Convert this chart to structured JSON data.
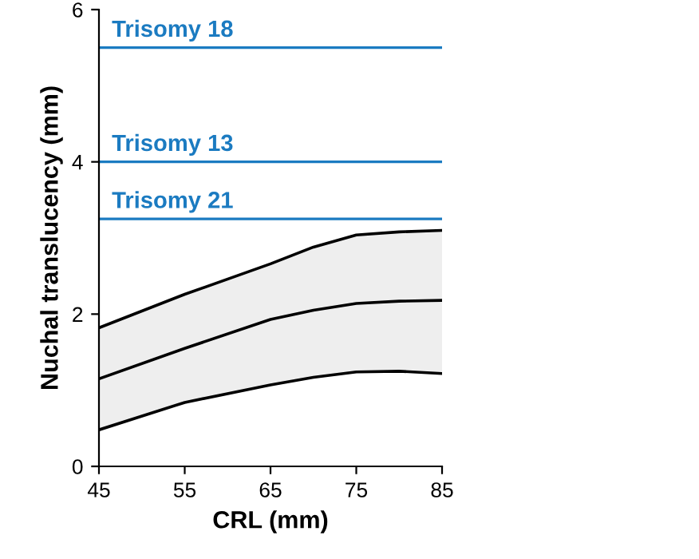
{
  "chart_data": {
    "type": "line",
    "xlabel": "CRL (mm)",
    "ylabel": "Nuchal translucency (mm)",
    "x": [
      45,
      55,
      65,
      70,
      75,
      80,
      85
    ],
    "series": [
      {
        "color": "#000000",
        "values": [
          1.82,
          2.26,
          2.66,
          2.88,
          3.04,
          3.08,
          3.1
        ]
      },
      {
        "color": "#000000",
        "values": [
          1.15,
          1.55,
          1.93,
          2.05,
          2.14,
          2.17,
          2.18
        ],
        "lower": [
          0.48,
          0.84,
          1.07,
          1.17,
          1.24,
          1.25,
          1.22
        ],
        "upper": [
          1.82,
          2.26,
          2.66,
          2.88,
          3.04,
          3.08,
          3.1
        ]
      },
      {
        "color": "#000000",
        "values": [
          0.48,
          0.84,
          1.07,
          1.17,
          1.24,
          1.25,
          1.22
        ]
      }
    ],
    "ref_lines": [
      {
        "axis": "y",
        "value": 5.5,
        "label": "Trisomy 18",
        "color": "#1b7bc1"
      },
      {
        "axis": "y",
        "value": 4.0,
        "label": "Trisomy 13",
        "color": "#1b7bc1"
      },
      {
        "axis": "y",
        "value": 3.25,
        "label": "Trisomy 21",
        "color": "#1b7bc1"
      }
    ],
    "xlim": [
      45,
      85
    ],
    "xticks": [
      45,
      55,
      65,
      75,
      85
    ],
    "ylim": [
      0,
      6
    ],
    "yticks": [
      0,
      2,
      4,
      6
    ],
    "grid": false,
    "legend": false,
    "marker": "none",
    "line_style": "solid"
  }
}
